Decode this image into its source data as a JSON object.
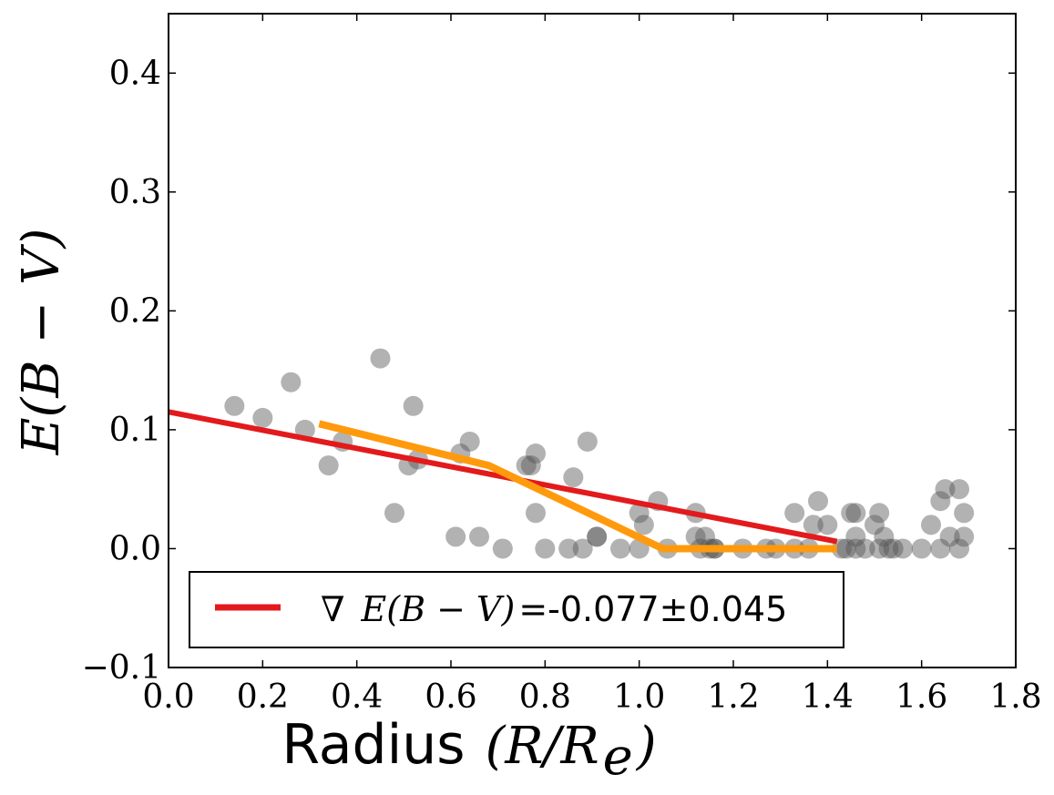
{
  "chart_data": {
    "type": "scatter",
    "xlabel": "Radius",
    "xlabel_math": "(R/R",
    "xlabel_sub": "e",
    "xlabel_close": ")",
    "ylabel": "E(B − V)",
    "xlim": [
      0.0,
      1.8
    ],
    "ylim": [
      -0.1,
      0.45
    ],
    "x_ticks": [
      0.0,
      0.2,
      0.4,
      0.6,
      0.8,
      1.0,
      1.2,
      1.4,
      1.6,
      1.8
    ],
    "x_tick_labels": [
      "0.0",
      "0.2",
      "0.4",
      "0.6",
      "0.8",
      "1.0",
      "1.2",
      "1.4",
      "1.6",
      "1.8"
    ],
    "y_ticks": [
      -0.1,
      0.0,
      0.1,
      0.2,
      0.3,
      0.4
    ],
    "y_tick_labels": [
      "−0.1",
      "0.0",
      "0.1",
      "0.2",
      "0.3",
      "0.4"
    ],
    "grid": false,
    "legend": {
      "placement": "lower-left",
      "symbol": "∇",
      "math": "E(B − V)",
      "value": "=-0.077±0.045"
    },
    "series": [
      {
        "name": "points",
        "kind": "scatter",
        "color": "#555555",
        "points": [
          [
            0.14,
            0.12
          ],
          [
            0.2,
            0.11
          ],
          [
            0.26,
            0.14
          ],
          [
            0.29,
            0.1
          ],
          [
            0.34,
            0.07
          ],
          [
            0.37,
            0.09
          ],
          [
            0.45,
            0.16
          ],
          [
            0.48,
            0.03
          ],
          [
            0.51,
            0.07
          ],
          [
            0.52,
            0.12
          ],
          [
            0.53,
            0.075
          ],
          [
            0.62,
            0.08
          ],
          [
            0.64,
            0.09
          ],
          [
            0.61,
            0.01
          ],
          [
            0.66,
            0.01
          ],
          [
            0.71,
            0.0
          ],
          [
            0.77,
            0.07
          ],
          [
            0.76,
            0.07
          ],
          [
            0.78,
            0.08
          ],
          [
            0.78,
            0.03
          ],
          [
            0.8,
            0.0
          ],
          [
            0.86,
            0.06
          ],
          [
            0.85,
            0.0
          ],
          [
            0.88,
            0.0
          ],
          [
            0.89,
            0.09
          ],
          [
            0.91,
            0.01
          ],
          [
            0.91,
            0.01
          ],
          [
            0.96,
            0.0
          ],
          [
            1.0,
            0.03
          ],
          [
            1.01,
            0.02
          ],
          [
            1.0,
            0.0
          ],
          [
            1.04,
            0.04
          ],
          [
            1.06,
            0.0
          ],
          [
            1.12,
            0.03
          ],
          [
            1.12,
            0.01
          ],
          [
            1.13,
            0.0
          ],
          [
            1.15,
            0.0
          ],
          [
            1.14,
            0.01
          ],
          [
            1.16,
            0.0
          ],
          [
            1.16,
            0.0
          ],
          [
            1.22,
            0.0
          ],
          [
            1.27,
            0.0
          ],
          [
            1.29,
            0.0
          ],
          [
            1.33,
            0.03
          ],
          [
            1.33,
            0.0
          ],
          [
            1.36,
            0.0
          ],
          [
            1.37,
            0.02
          ],
          [
            1.38,
            0.04
          ],
          [
            1.4,
            0.02
          ],
          [
            1.43,
            0.0
          ],
          [
            1.44,
            0.0
          ],
          [
            1.45,
            0.03
          ],
          [
            1.46,
            0.0
          ],
          [
            1.46,
            0.01
          ],
          [
            1.46,
            0.03
          ],
          [
            1.48,
            0.0
          ],
          [
            1.5,
            0.02
          ],
          [
            1.51,
            0.03
          ],
          [
            1.51,
            0.0
          ],
          [
            1.52,
            0.01
          ],
          [
            1.53,
            0.0
          ],
          [
            1.54,
            0.0
          ],
          [
            1.56,
            0.0
          ],
          [
            1.6,
            0.0
          ],
          [
            1.62,
            0.02
          ],
          [
            1.64,
            0.0
          ],
          [
            1.64,
            0.04
          ],
          [
            1.65,
            0.05
          ],
          [
            1.66,
            0.01
          ],
          [
            1.68,
            0.0
          ],
          [
            1.68,
            0.05
          ],
          [
            1.69,
            0.01
          ],
          [
            1.69,
            0.03
          ]
        ]
      },
      {
        "name": "linear fit",
        "kind": "line",
        "color": "#e31a1c",
        "points": [
          [
            0.0,
            0.115
          ],
          [
            1.42,
            0.006
          ]
        ]
      },
      {
        "name": "profile",
        "kind": "line",
        "color": "#ff9a0d",
        "points": [
          [
            0.32,
            0.105
          ],
          [
            0.68,
            0.07
          ],
          [
            1.05,
            0.0
          ],
          [
            1.42,
            0.0
          ]
        ]
      }
    ]
  }
}
